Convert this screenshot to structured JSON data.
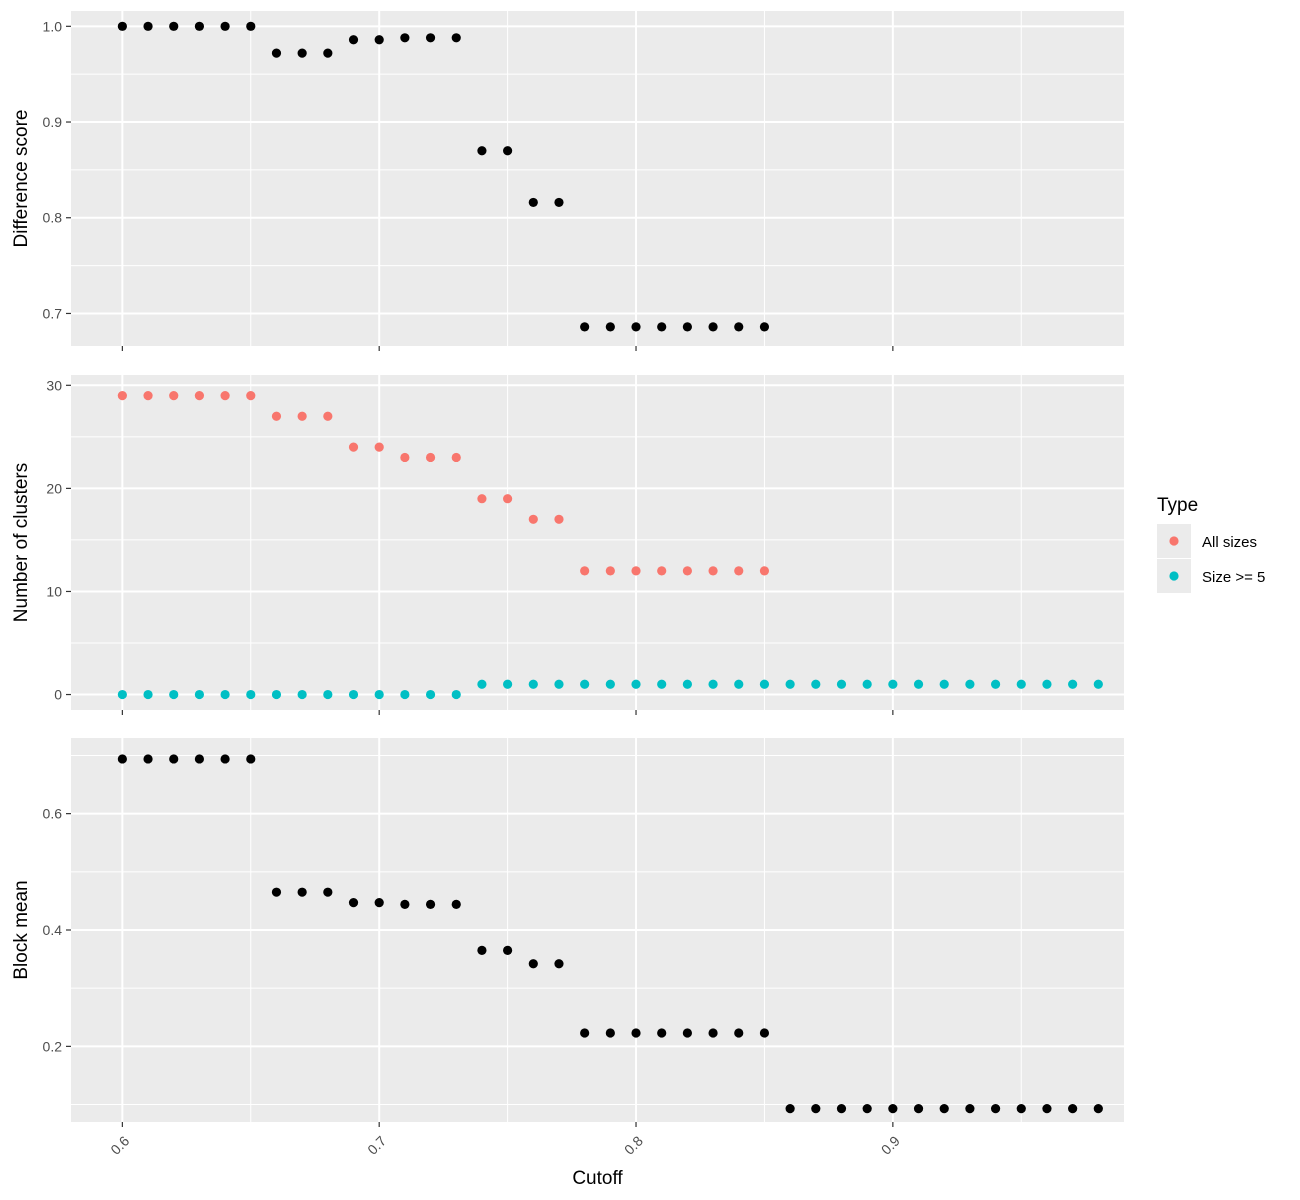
{
  "chart_data": [
    {
      "type": "scatter",
      "ylabel": "Difference score",
      "xlim": [
        0.58,
        0.99
      ],
      "ylim": [
        0.666,
        1.016
      ],
      "x_ticks": [
        0.6,
        0.7,
        0.8,
        0.9
      ],
      "y_ticks": [
        0.7,
        0.8,
        0.9,
        1.0
      ],
      "y_tick_labels": [
        "0.7",
        "0.8",
        "0.9",
        "1.0"
      ],
      "grid": true,
      "series": [
        {
          "color": "#000000",
          "x": [
            0.6,
            0.61,
            0.62,
            0.63,
            0.64,
            0.65,
            0.66,
            0.67,
            0.68,
            0.69,
            0.7,
            0.71,
            0.72,
            0.73,
            0.74,
            0.75,
            0.76,
            0.77,
            0.78,
            0.79,
            0.8,
            0.81,
            0.82,
            0.83,
            0.84,
            0.85
          ],
          "y": [
            1.0,
            1.0,
            1.0,
            1.0,
            1.0,
            1.0,
            0.972,
            0.972,
            0.972,
            0.986,
            0.986,
            0.988,
            0.988,
            0.988,
            0.87,
            0.87,
            0.816,
            0.816,
            0.686,
            0.686,
            0.686,
            0.686,
            0.686,
            0.686,
            0.686,
            0.686
          ]
        }
      ]
    },
    {
      "type": "scatter",
      "ylabel": "Number of clusters",
      "xlim": [
        0.58,
        0.99
      ],
      "ylim": [
        -1.5,
        31
      ],
      "x_ticks": [
        0.6,
        0.7,
        0.8,
        0.9
      ],
      "y_ticks": [
        0,
        10,
        20,
        30
      ],
      "y_tick_labels": [
        "0",
        "10",
        "20",
        "30"
      ],
      "grid": true,
      "legend": {
        "title": "Type",
        "position": "right"
      },
      "series": [
        {
          "name": "All sizes",
          "color": "#F8766D",
          "x": [
            0.6,
            0.61,
            0.62,
            0.63,
            0.64,
            0.65,
            0.66,
            0.67,
            0.68,
            0.69,
            0.7,
            0.71,
            0.72,
            0.73,
            0.74,
            0.75,
            0.76,
            0.77,
            0.78,
            0.79,
            0.8,
            0.81,
            0.82,
            0.83,
            0.84,
            0.85
          ],
          "y": [
            29,
            29,
            29,
            29,
            29,
            29,
            27,
            27,
            27,
            24,
            24,
            23,
            23,
            23,
            19,
            19,
            17,
            17,
            12,
            12,
            12,
            12,
            12,
            12,
            12,
            12
          ]
        },
        {
          "name": "Size >= 5",
          "color": "#00BFC4",
          "x": [
            0.6,
            0.61,
            0.62,
            0.63,
            0.64,
            0.65,
            0.66,
            0.67,
            0.68,
            0.69,
            0.7,
            0.71,
            0.72,
            0.73,
            0.74,
            0.75,
            0.76,
            0.77,
            0.78,
            0.79,
            0.8,
            0.81,
            0.82,
            0.83,
            0.84,
            0.85,
            0.86,
            0.87,
            0.88,
            0.89,
            0.9,
            0.91,
            0.92,
            0.93,
            0.94,
            0.95,
            0.96,
            0.97,
            0.98
          ],
          "y": [
            0,
            0,
            0,
            0,
            0,
            0,
            0,
            0,
            0,
            0,
            0,
            0,
            0,
            0,
            1,
            1,
            1,
            1,
            1,
            1,
            1,
            1,
            1,
            1,
            1,
            1,
            1,
            1,
            1,
            1,
            1,
            1,
            1,
            1,
            1,
            1,
            1,
            1,
            1
          ]
        }
      ]
    },
    {
      "type": "scatter",
      "ylabel": "Block mean",
      "xlabel": "Cutoff",
      "xlim": [
        0.58,
        0.99
      ],
      "ylim": [
        0.07,
        0.73
      ],
      "x_ticks": [
        0.6,
        0.7,
        0.8,
        0.9
      ],
      "x_tick_labels": [
        "0.6",
        "0.7",
        "0.8",
        "0.9"
      ],
      "y_ticks": [
        0.2,
        0.4,
        0.6
      ],
      "y_tick_labels": [
        "0.2",
        "0.4",
        "0.6"
      ],
      "grid": true,
      "series": [
        {
          "color": "#000000",
          "x": [
            0.6,
            0.61,
            0.62,
            0.63,
            0.64,
            0.65,
            0.66,
            0.67,
            0.68,
            0.69,
            0.7,
            0.71,
            0.72,
            0.73,
            0.74,
            0.75,
            0.76,
            0.77,
            0.78,
            0.79,
            0.8,
            0.81,
            0.82,
            0.83,
            0.84,
            0.85,
            0.86,
            0.87,
            0.88,
            0.89,
            0.9,
            0.91,
            0.92,
            0.93,
            0.94,
            0.95,
            0.96,
            0.97,
            0.98
          ],
          "y": [
            0.694,
            0.694,
            0.694,
            0.694,
            0.694,
            0.694,
            0.465,
            0.465,
            0.465,
            0.447,
            0.447,
            0.444,
            0.444,
            0.444,
            0.365,
            0.365,
            0.342,
            0.342,
            0.223,
            0.223,
            0.223,
            0.223,
            0.223,
            0.223,
            0.223,
            0.223,
            0.093,
            0.093,
            0.093,
            0.093,
            0.093,
            0.093,
            0.093,
            0.093,
            0.093,
            0.093,
            0.093,
            0.093,
            0.093
          ]
        }
      ]
    }
  ]
}
